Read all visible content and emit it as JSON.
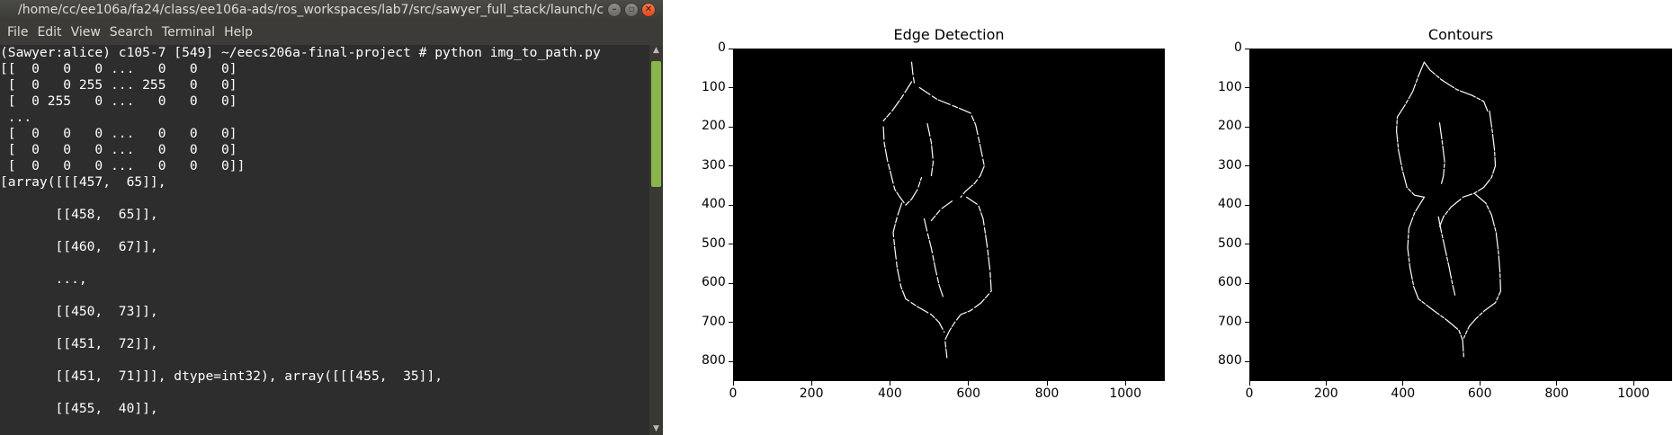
{
  "terminal": {
    "title": "/home/cc/ee106a/fa24/class/ee106a-ads/ros_workspaces/lab7/src/sawyer_full_stack/launch/c",
    "window_buttons": [
      "minimize",
      "maximize",
      "close"
    ],
    "menu": [
      "File",
      "Edit",
      "View",
      "Search",
      "Terminal",
      "Help"
    ],
    "lines": [
      "(Sawyer:alice) c105-7 [549] ~/eecs206a-final-project # python img_to_path.py",
      "[[  0   0   0 ...   0   0   0]",
      " [  0   0 255 ... 255   0   0]",
      " [  0 255   0 ...   0   0   0]",
      " ...",
      " [  0   0   0 ...   0   0   0]",
      " [  0   0   0 ...   0   0   0]",
      " [  0   0   0 ...   0   0   0]]",
      "[array([[[457,  65]],",
      "",
      "       [[458,  65]],",
      "",
      "       [[460,  67]],",
      "",
      "       ...,",
      "",
      "       [[450,  73]],",
      "",
      "       [[451,  72]],",
      "",
      "       [[451,  71]]], dtype=int32), array([[[455,  35]],",
      "",
      "       [[455,  40]],"
    ]
  },
  "figure": {
    "background": "#ffffff",
    "plot_background": "#000000",
    "line_color": "#ffffff"
  },
  "chart_data": [
    {
      "type": "heatmap",
      "title": "Edge Detection",
      "xlabel": "",
      "ylabel": "",
      "xlim": [
        0,
        1100
      ],
      "ylim": [
        850,
        0
      ],
      "x_ticks": [
        0,
        200,
        400,
        600,
        800,
        1000
      ],
      "y_ticks": [
        0,
        100,
        200,
        300,
        400,
        500,
        600,
        700,
        800
      ],
      "grid": false,
      "legend": "none",
      "paths": [
        [
          [
            455,
            35
          ],
          [
            458,
            65
          ],
          [
            462,
            90
          ]
        ],
        [
          [
            475,
            100
          ],
          [
            520,
            130
          ],
          [
            570,
            150
          ],
          [
            605,
            165
          ],
          [
            618,
            195
          ],
          [
            628,
            240
          ],
          [
            640,
            300
          ],
          [
            630,
            325
          ],
          [
            615,
            345
          ],
          [
            592,
            365
          ],
          [
            580,
            380
          ]
        ],
        [
          [
            455,
            85
          ],
          [
            430,
            125
          ],
          [
            405,
            160
          ],
          [
            383,
            185
          ]
        ],
        [
          [
            383,
            200
          ],
          [
            385,
            240
          ],
          [
            393,
            285
          ],
          [
            402,
            320
          ],
          [
            412,
            360
          ],
          [
            425,
            380
          ],
          [
            440,
            400
          ],
          [
            455,
            385
          ],
          [
            470,
            360
          ],
          [
            480,
            330
          ]
        ],
        [
          [
            495,
            192
          ],
          [
            505,
            240
          ],
          [
            510,
            290
          ],
          [
            505,
            325
          ]
        ],
        [
          [
            430,
            395
          ],
          [
            418,
            430
          ],
          [
            408,
            470
          ],
          [
            412,
            510
          ],
          [
            418,
            560
          ],
          [
            428,
            610
          ],
          [
            440,
            640
          ],
          [
            470,
            660
          ],
          [
            505,
            680
          ],
          [
            525,
            700
          ],
          [
            538,
            725
          ]
        ],
        [
          [
            595,
            380
          ],
          [
            625,
            400
          ],
          [
            637,
            435
          ],
          [
            643,
            475
          ],
          [
            648,
            510
          ],
          [
            655,
            570
          ],
          [
            658,
            620
          ],
          [
            632,
            650
          ],
          [
            605,
            670
          ],
          [
            580,
            680
          ],
          [
            565,
            700
          ],
          [
            552,
            720
          ],
          [
            540,
            745
          ],
          [
            545,
            790
          ]
        ],
        [
          [
            487,
            435
          ],
          [
            495,
            470
          ],
          [
            505,
            510
          ],
          [
            515,
            560
          ],
          [
            525,
            605
          ],
          [
            535,
            635
          ]
        ],
        [
          [
            558,
            390
          ],
          [
            530,
            410
          ],
          [
            505,
            440
          ]
        ]
      ]
    },
    {
      "type": "heatmap",
      "title": "Contours",
      "xlabel": "",
      "ylabel": "",
      "xlim": [
        0,
        1100
      ],
      "ylim": [
        850,
        0
      ],
      "x_ticks": [
        0,
        200,
        400,
        600,
        800,
        1000
      ],
      "y_ticks": [
        0,
        100,
        200,
        300,
        400,
        500,
        600,
        700,
        800
      ],
      "grid": false,
      "legend": "none",
      "paths": [
        [
          [
            455,
            35
          ],
          [
            470,
            55
          ],
          [
            500,
            80
          ],
          [
            540,
            105
          ],
          [
            580,
            120
          ],
          [
            610,
            135
          ],
          [
            620,
            160
          ]
        ],
        [
          [
            455,
            35
          ],
          [
            440,
            70
          ],
          [
            425,
            110
          ],
          [
            405,
            145
          ],
          [
            385,
            175
          ],
          [
            383,
            210
          ],
          [
            388,
            260
          ],
          [
            398,
            310
          ],
          [
            410,
            355
          ],
          [
            430,
            375
          ],
          [
            455,
            380
          ]
        ],
        [
          [
            495,
            190
          ],
          [
            502,
            240
          ],
          [
            508,
            290
          ],
          [
            505,
            325
          ],
          [
            500,
            345
          ]
        ],
        [
          [
            625,
            160
          ],
          [
            632,
            210
          ],
          [
            638,
            260
          ],
          [
            640,
            300
          ],
          [
            630,
            330
          ],
          [
            610,
            355
          ],
          [
            585,
            370
          ],
          [
            555,
            380
          ]
        ],
        [
          [
            455,
            380
          ],
          [
            430,
            420
          ],
          [
            415,
            460
          ],
          [
            412,
            510
          ],
          [
            418,
            560
          ],
          [
            428,
            610
          ],
          [
            440,
            640
          ],
          [
            480,
            670
          ],
          [
            515,
            695
          ],
          [
            545,
            720
          ],
          [
            555,
            745
          ],
          [
            558,
            790
          ]
        ],
        [
          [
            585,
            370
          ],
          [
            615,
            395
          ],
          [
            630,
            425
          ],
          [
            642,
            470
          ],
          [
            648,
            520
          ],
          [
            652,
            570
          ],
          [
            654,
            620
          ],
          [
            640,
            650
          ],
          [
            612,
            670
          ],
          [
            590,
            690
          ],
          [
            572,
            710
          ],
          [
            558,
            740
          ]
        ],
        [
          [
            492,
            430
          ],
          [
            500,
            470
          ],
          [
            510,
            515
          ],
          [
            520,
            560
          ],
          [
            528,
            600
          ],
          [
            535,
            630
          ]
        ],
        [
          [
            550,
            385
          ],
          [
            525,
            405
          ],
          [
            505,
            430
          ],
          [
            495,
            455
          ]
        ]
      ]
    }
  ]
}
